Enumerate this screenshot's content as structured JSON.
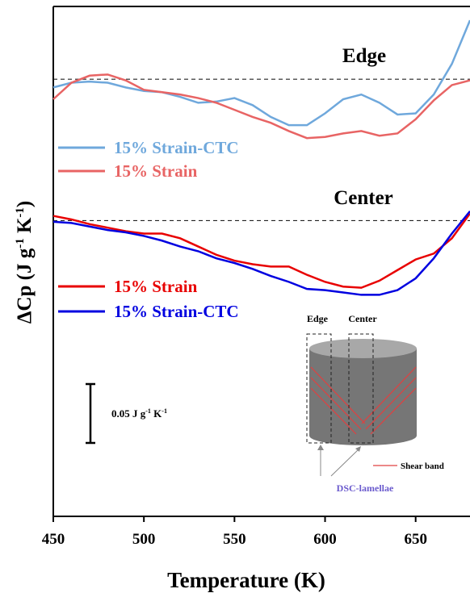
{
  "chart_data": {
    "type": "line",
    "xlabel": "Temperature (K)",
    "ylabel": {
      "main": "ΔCp (J g",
      "sup1": "-1",
      "mid": " K",
      "sup2": "-1",
      "end": ")"
    },
    "x": [
      450,
      460,
      470,
      480,
      490,
      500,
      510,
      520,
      530,
      540,
      550,
      560,
      570,
      580,
      590,
      600,
      610,
      620,
      630,
      640,
      650,
      660,
      670,
      680
    ],
    "xlim": [
      450,
      680
    ],
    "xticks": [
      450,
      500,
      550,
      600,
      650
    ],
    "ylim": [
      0,
      0.43
    ],
    "series": [
      {
        "name": "15% Strain-CTC",
        "color": "#6fa8dc",
        "values": [
          0.364,
          0.368,
          0.369,
          0.368,
          0.364,
          0.361,
          0.36,
          0.356,
          0.351,
          0.352,
          0.355,
          0.349,
          0.339,
          0.332,
          0.332,
          0.342,
          0.354,
          0.358,
          0.351,
          0.341,
          0.342,
          0.358,
          0.384,
          0.421
        ]
      },
      {
        "name": "15% Strain",
        "color": "#e86464",
        "values": [
          0.354,
          0.368,
          0.374,
          0.375,
          0.37,
          0.362,
          0.36,
          0.358,
          0.355,
          0.351,
          0.345,
          0.339,
          0.334,
          0.327,
          0.321,
          0.322,
          0.325,
          0.327,
          0.323,
          0.325,
          0.337,
          0.353,
          0.366,
          0.37
        ]
      },
      {
        "name": "15% Strain",
        "color": "#e80000",
        "values": [
          0.255,
          0.252,
          0.248,
          0.245,
          0.242,
          0.24,
          0.24,
          0.236,
          0.229,
          0.222,
          0.217,
          0.214,
          0.212,
          0.212,
          0.205,
          0.199,
          0.195,
          0.194,
          0.2,
          0.209,
          0.218,
          0.223,
          0.236,
          0.257
        ]
      },
      {
        "name": "15% Strain-CTC",
        "color": "#0000e0",
        "values": [
          0.25,
          0.249,
          0.246,
          0.243,
          0.241,
          0.238,
          0.234,
          0.229,
          0.225,
          0.219,
          0.215,
          0.21,
          0.204,
          0.199,
          0.193,
          0.192,
          0.19,
          0.188,
          0.188,
          0.192,
          0.202,
          0.219,
          0.24,
          0.259
        ]
      }
    ],
    "reference_lines": [
      0.371,
      0.251
    ],
    "annotations": [
      "Edge",
      "Center"
    ],
    "scale_bar": {
      "value": 0.05,
      "label": {
        "num": "0.05 J g",
        "sup1": "-1",
        "mid": " K",
        "sup2": "-1"
      }
    },
    "inset": {
      "edge": "Edge",
      "center": "Center",
      "shear_band": "Shear band",
      "lamellae": "DSC-lamellae"
    }
  }
}
